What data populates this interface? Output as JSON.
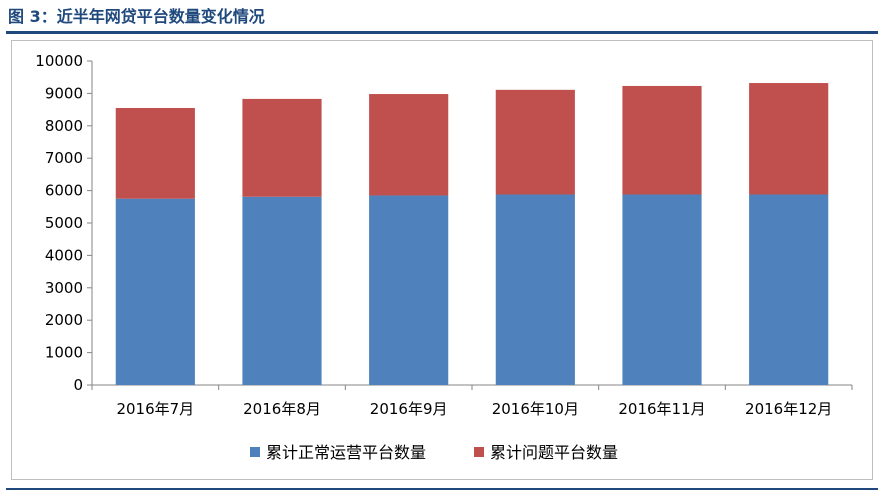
{
  "figure": {
    "caption": "图 3：近半年网贷平台数量变化情况"
  },
  "colors": {
    "accent": "#1f497d",
    "series_normal": "#4f81bd",
    "series_problem": "#c0504d"
  },
  "chart_data": {
    "type": "bar",
    "stacked": true,
    "categories": [
      "2016年7月",
      "2016年8月",
      "2016年9月",
      "2016年10月",
      "2016年11月",
      "2016年12月"
    ],
    "series": [
      {
        "name": "累计正常运营平台数量",
        "color": "#4f81bd",
        "values": [
          5750,
          5810,
          5850,
          5880,
          5880,
          5880
        ]
      },
      {
        "name": "累计问题平台数量",
        "color": "#c0504d",
        "values": [
          2800,
          3020,
          3130,
          3230,
          3350,
          3440
        ]
      }
    ],
    "y_ticks": [
      0,
      1000,
      2000,
      3000,
      4000,
      5000,
      6000,
      7000,
      8000,
      9000,
      10000
    ],
    "ylim": [
      0,
      10000
    ],
    "grid": false,
    "legend_position": "bottom"
  }
}
